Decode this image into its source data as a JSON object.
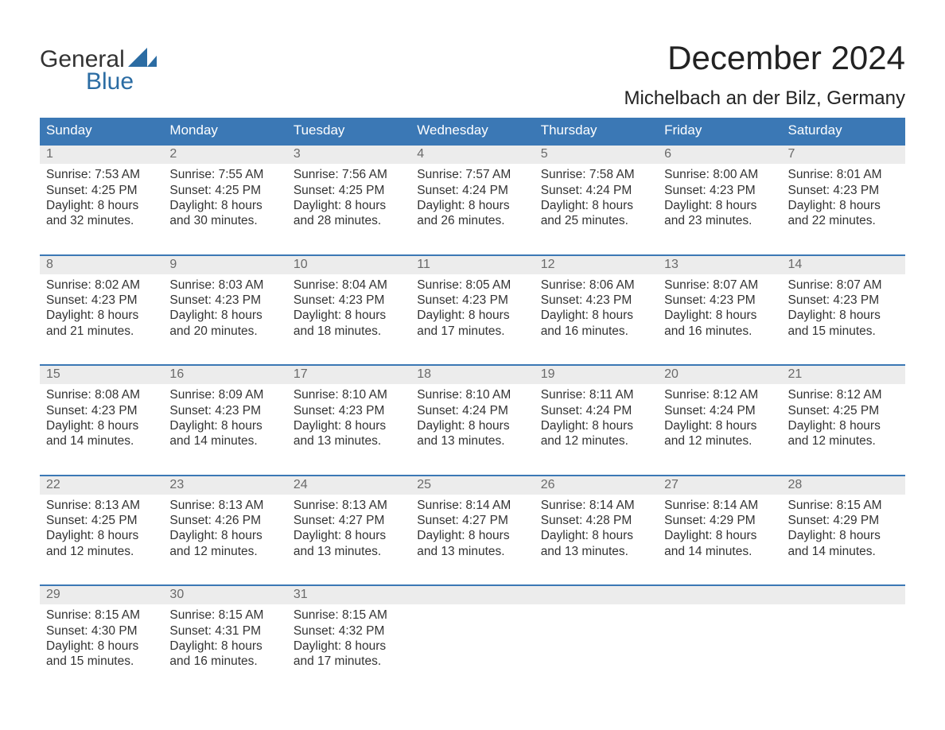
{
  "brand": {
    "word1": "General",
    "word2": "Blue"
  },
  "title": "December 2024",
  "location": "Michelbach an der Bilz, Germany",
  "colors": {
    "header_bg": "#3b78b5",
    "header_text": "#ffffff",
    "daynum_bg": "#ececec",
    "daynum_text": "#6a6a6a",
    "body_text": "#333333",
    "accent": "#2b6ca3",
    "page_bg": "#ffffff"
  },
  "fonts": {
    "title_size_pt": 32,
    "location_size_pt": 18,
    "weekday_size_pt": 13,
    "cell_size_pt": 12
  },
  "calendar": {
    "type": "table",
    "weekdays": [
      "Sunday",
      "Monday",
      "Tuesday",
      "Wednesday",
      "Thursday",
      "Friday",
      "Saturday"
    ],
    "weeks": [
      {
        "days": [
          {
            "num": "1",
            "sunrise": "Sunrise: 7:53 AM",
            "sunset": "Sunset: 4:25 PM",
            "d1": "Daylight: 8 hours",
            "d2": "and 32 minutes."
          },
          {
            "num": "2",
            "sunrise": "Sunrise: 7:55 AM",
            "sunset": "Sunset: 4:25 PM",
            "d1": "Daylight: 8 hours",
            "d2": "and 30 minutes."
          },
          {
            "num": "3",
            "sunrise": "Sunrise: 7:56 AM",
            "sunset": "Sunset: 4:25 PM",
            "d1": "Daylight: 8 hours",
            "d2": "and 28 minutes."
          },
          {
            "num": "4",
            "sunrise": "Sunrise: 7:57 AM",
            "sunset": "Sunset: 4:24 PM",
            "d1": "Daylight: 8 hours",
            "d2": "and 26 minutes."
          },
          {
            "num": "5",
            "sunrise": "Sunrise: 7:58 AM",
            "sunset": "Sunset: 4:24 PM",
            "d1": "Daylight: 8 hours",
            "d2": "and 25 minutes."
          },
          {
            "num": "6",
            "sunrise": "Sunrise: 8:00 AM",
            "sunset": "Sunset: 4:23 PM",
            "d1": "Daylight: 8 hours",
            "d2": "and 23 minutes."
          },
          {
            "num": "7",
            "sunrise": "Sunrise: 8:01 AM",
            "sunset": "Sunset: 4:23 PM",
            "d1": "Daylight: 8 hours",
            "d2": "and 22 minutes."
          }
        ]
      },
      {
        "days": [
          {
            "num": "8",
            "sunrise": "Sunrise: 8:02 AM",
            "sunset": "Sunset: 4:23 PM",
            "d1": "Daylight: 8 hours",
            "d2": "and 21 minutes."
          },
          {
            "num": "9",
            "sunrise": "Sunrise: 8:03 AM",
            "sunset": "Sunset: 4:23 PM",
            "d1": "Daylight: 8 hours",
            "d2": "and 20 minutes."
          },
          {
            "num": "10",
            "sunrise": "Sunrise: 8:04 AM",
            "sunset": "Sunset: 4:23 PM",
            "d1": "Daylight: 8 hours",
            "d2": "and 18 minutes."
          },
          {
            "num": "11",
            "sunrise": "Sunrise: 8:05 AM",
            "sunset": "Sunset: 4:23 PM",
            "d1": "Daylight: 8 hours",
            "d2": "and 17 minutes."
          },
          {
            "num": "12",
            "sunrise": "Sunrise: 8:06 AM",
            "sunset": "Sunset: 4:23 PM",
            "d1": "Daylight: 8 hours",
            "d2": "and 16 minutes."
          },
          {
            "num": "13",
            "sunrise": "Sunrise: 8:07 AM",
            "sunset": "Sunset: 4:23 PM",
            "d1": "Daylight: 8 hours",
            "d2": "and 16 minutes."
          },
          {
            "num": "14",
            "sunrise": "Sunrise: 8:07 AM",
            "sunset": "Sunset: 4:23 PM",
            "d1": "Daylight: 8 hours",
            "d2": "and 15 minutes."
          }
        ]
      },
      {
        "days": [
          {
            "num": "15",
            "sunrise": "Sunrise: 8:08 AM",
            "sunset": "Sunset: 4:23 PM",
            "d1": "Daylight: 8 hours",
            "d2": "and 14 minutes."
          },
          {
            "num": "16",
            "sunrise": "Sunrise: 8:09 AM",
            "sunset": "Sunset: 4:23 PM",
            "d1": "Daylight: 8 hours",
            "d2": "and 14 minutes."
          },
          {
            "num": "17",
            "sunrise": "Sunrise: 8:10 AM",
            "sunset": "Sunset: 4:23 PM",
            "d1": "Daylight: 8 hours",
            "d2": "and 13 minutes."
          },
          {
            "num": "18",
            "sunrise": "Sunrise: 8:10 AM",
            "sunset": "Sunset: 4:24 PM",
            "d1": "Daylight: 8 hours",
            "d2": "and 13 minutes."
          },
          {
            "num": "19",
            "sunrise": "Sunrise: 8:11 AM",
            "sunset": "Sunset: 4:24 PM",
            "d1": "Daylight: 8 hours",
            "d2": "and 12 minutes."
          },
          {
            "num": "20",
            "sunrise": "Sunrise: 8:12 AM",
            "sunset": "Sunset: 4:24 PM",
            "d1": "Daylight: 8 hours",
            "d2": "and 12 minutes."
          },
          {
            "num": "21",
            "sunrise": "Sunrise: 8:12 AM",
            "sunset": "Sunset: 4:25 PM",
            "d1": "Daylight: 8 hours",
            "d2": "and 12 minutes."
          }
        ]
      },
      {
        "days": [
          {
            "num": "22",
            "sunrise": "Sunrise: 8:13 AM",
            "sunset": "Sunset: 4:25 PM",
            "d1": "Daylight: 8 hours",
            "d2": "and 12 minutes."
          },
          {
            "num": "23",
            "sunrise": "Sunrise: 8:13 AM",
            "sunset": "Sunset: 4:26 PM",
            "d1": "Daylight: 8 hours",
            "d2": "and 12 minutes."
          },
          {
            "num": "24",
            "sunrise": "Sunrise: 8:13 AM",
            "sunset": "Sunset: 4:27 PM",
            "d1": "Daylight: 8 hours",
            "d2": "and 13 minutes."
          },
          {
            "num": "25",
            "sunrise": "Sunrise: 8:14 AM",
            "sunset": "Sunset: 4:27 PM",
            "d1": "Daylight: 8 hours",
            "d2": "and 13 minutes."
          },
          {
            "num": "26",
            "sunrise": "Sunrise: 8:14 AM",
            "sunset": "Sunset: 4:28 PM",
            "d1": "Daylight: 8 hours",
            "d2": "and 13 minutes."
          },
          {
            "num": "27",
            "sunrise": "Sunrise: 8:14 AM",
            "sunset": "Sunset: 4:29 PM",
            "d1": "Daylight: 8 hours",
            "d2": "and 14 minutes."
          },
          {
            "num": "28",
            "sunrise": "Sunrise: 8:15 AM",
            "sunset": "Sunset: 4:29 PM",
            "d1": "Daylight: 8 hours",
            "d2": "and 14 minutes."
          }
        ]
      },
      {
        "days": [
          {
            "num": "29",
            "sunrise": "Sunrise: 8:15 AM",
            "sunset": "Sunset: 4:30 PM",
            "d1": "Daylight: 8 hours",
            "d2": "and 15 minutes."
          },
          {
            "num": "30",
            "sunrise": "Sunrise: 8:15 AM",
            "sunset": "Sunset: 4:31 PM",
            "d1": "Daylight: 8 hours",
            "d2": "and 16 minutes."
          },
          {
            "num": "31",
            "sunrise": "Sunrise: 8:15 AM",
            "sunset": "Sunset: 4:32 PM",
            "d1": "Daylight: 8 hours",
            "d2": "and 17 minutes."
          },
          {
            "num": "",
            "sunrise": "",
            "sunset": "",
            "d1": "",
            "d2": ""
          },
          {
            "num": "",
            "sunrise": "",
            "sunset": "",
            "d1": "",
            "d2": ""
          },
          {
            "num": "",
            "sunrise": "",
            "sunset": "",
            "d1": "",
            "d2": ""
          },
          {
            "num": "",
            "sunrise": "",
            "sunset": "",
            "d1": "",
            "d2": ""
          }
        ]
      }
    ]
  }
}
